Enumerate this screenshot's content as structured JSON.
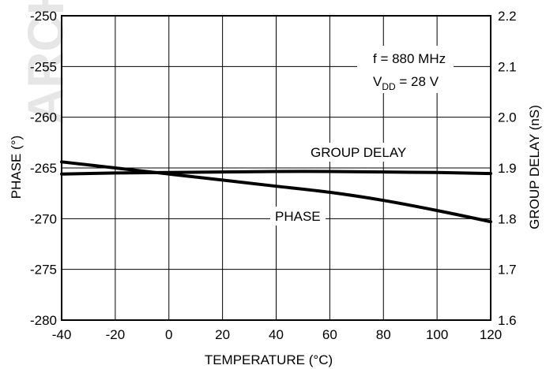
{
  "watermark": "ARCH",
  "chart_data": {
    "type": "line",
    "x_axis": {
      "label": "TEMPERATURE (°C)",
      "range": [
        -40,
        120
      ],
      "ticks": [
        -40,
        -20,
        0,
        20,
        40,
        60,
        80,
        100,
        120
      ]
    },
    "y_left": {
      "label": "PHASE (°)",
      "range": [
        -280,
        -250
      ],
      "ticks": [
        -250,
        -255,
        -260,
        -265,
        -270,
        -275,
        -280
      ]
    },
    "y_right": {
      "label": "GROUP DELAY (nS)",
      "range": [
        1.6,
        2.2
      ],
      "ticks": [
        2.2,
        2.1,
        2.0,
        1.9,
        1.8,
        1.7,
        1.6
      ],
      "tick_labels": [
        "2.2",
        "2.1",
        "2.0",
        "1.9",
        "1.8",
        "1.7",
        "1.6"
      ]
    },
    "grid": true,
    "annotation": {
      "line1": "f = 880 MHz",
      "line2_main": "V",
      "line2_sub": "DD",
      "line2_rest": " = 28 V"
    },
    "series": [
      {
        "name": "PHASE",
        "axis": "left",
        "x": [
          -40,
          -20,
          0,
          20,
          40,
          60,
          80,
          100,
          120
        ],
        "y": [
          -264.4,
          -265.0,
          -265.6,
          -266.2,
          -266.8,
          -267.4,
          -268.2,
          -269.2,
          -270.3
        ]
      },
      {
        "name": "GROUP DELAY",
        "axis": "right",
        "x": [
          -40,
          -20,
          0,
          20,
          40,
          60,
          80,
          100,
          120
        ],
        "y": [
          1.888,
          1.89,
          1.891,
          1.892,
          1.893,
          1.893,
          1.892,
          1.891,
          1.889
        ]
      }
    ]
  }
}
